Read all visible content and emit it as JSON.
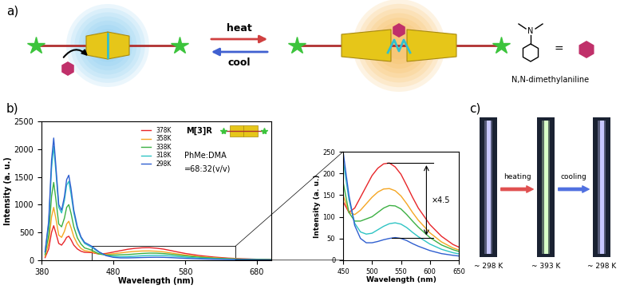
{
  "panel_labels": [
    "a)",
    "b)",
    "c)"
  ],
  "diagram": {
    "forward": "heat",
    "backward": "cool",
    "structure_atom": "N",
    "equals": "=",
    "guest_name": "N,N-dimethylaniline"
  },
  "chart_data": [
    {
      "type": "line",
      "xlabel": "Wavelength (nm)",
      "ylabel": "Intensity (a. u.)",
      "xlim": [
        380,
        700
      ],
      "xticks": [
        380,
        480,
        580,
        680
      ],
      "ylim": [
        0,
        2500
      ],
      "yticks": [
        0,
        500,
        1000,
        1500,
        2000,
        2500
      ],
      "legend": "upper center",
      "annotations": [
        "M[3]R",
        "PhMe:DMA",
        "=68:32(v/v)"
      ],
      "x": [
        385,
        390,
        394,
        397,
        400,
        404,
        408,
        412,
        415,
        418,
        421,
        425,
        430,
        435,
        440,
        450,
        460,
        470,
        480,
        490,
        500,
        510,
        520,
        530,
        540,
        550,
        560,
        570,
        580,
        600,
        620,
        640,
        660,
        680,
        700
      ],
      "series": [
        {
          "name": "378K",
          "color": "#e8262a",
          "values": [
            45,
            200,
            500,
            620,
            490,
            300,
            270,
            340,
            410,
            430,
            370,
            270,
            200,
            160,
            140,
            135,
            110,
            120,
            145,
            170,
            195,
            212,
            222,
            224,
            215,
            198,
            172,
            145,
            120,
            82,
            55,
            36,
            24,
            16,
            11
          ]
        },
        {
          "name": "358K",
          "color": "#f5a623",
          "values": [
            70,
            310,
            780,
            950,
            750,
            450,
            410,
            520,
            650,
            700,
            590,
            420,
            290,
            210,
            170,
            150,
            110,
            105,
            115,
            130,
            145,
            157,
            164,
            165,
            160,
            148,
            130,
            110,
            92,
            63,
            42,
            28,
            19,
            13,
            9
          ]
        },
        {
          "name": "338K",
          "color": "#3cb043",
          "values": [
            100,
            450,
            1150,
            1400,
            1100,
            650,
            600,
            760,
            950,
            1000,
            850,
            600,
            400,
            290,
            220,
            180,
            110,
            90,
            90,
            95,
            100,
            110,
            120,
            126,
            125,
            118,
            105,
            90,
            76,
            52,
            35,
            24,
            16,
            11,
            8
          ]
        },
        {
          "name": "318K",
          "color": "#2ec4c4",
          "values": [
            140,
            650,
            1650,
            2050,
            1600,
            950,
            850,
            1080,
            1350,
            1420,
            1200,
            850,
            560,
            400,
            300,
            230,
            140,
            85,
            65,
            60,
            62,
            70,
            78,
            84,
            86,
            83,
            75,
            64,
            54,
            37,
            25,
            17,
            12,
            8,
            6
          ]
        },
        {
          "name": "298K",
          "color": "#2f5fd0",
          "values": [
            150,
            700,
            1800,
            2200,
            1700,
            1000,
            900,
            1150,
            1450,
            1530,
            1300,
            900,
            600,
            420,
            320,
            250,
            150,
            80,
            50,
            40,
            40,
            43,
            47,
            50,
            52,
            50,
            45,
            38,
            32,
            22,
            15,
            11,
            8,
            5,
            4
          ]
        }
      ]
    },
    {
      "type": "line",
      "xlabel": "Wavelength (nm)",
      "ylabel": "Intensity (a. u.)",
      "xlim": [
        450,
        650
      ],
      "xticks": [
        450,
        500,
        550,
        600,
        650
      ],
      "ylim": [
        0,
        250
      ],
      "yticks": [
        0,
        50,
        100,
        150,
        200,
        250
      ],
      "annotations": [
        "×4.5"
      ]
    }
  ],
  "photos": {
    "labels": [
      "~ 298 K",
      "~ 393 K",
      "~ 298 K"
    ],
    "steps": [
      "heating",
      "cooling"
    ]
  }
}
